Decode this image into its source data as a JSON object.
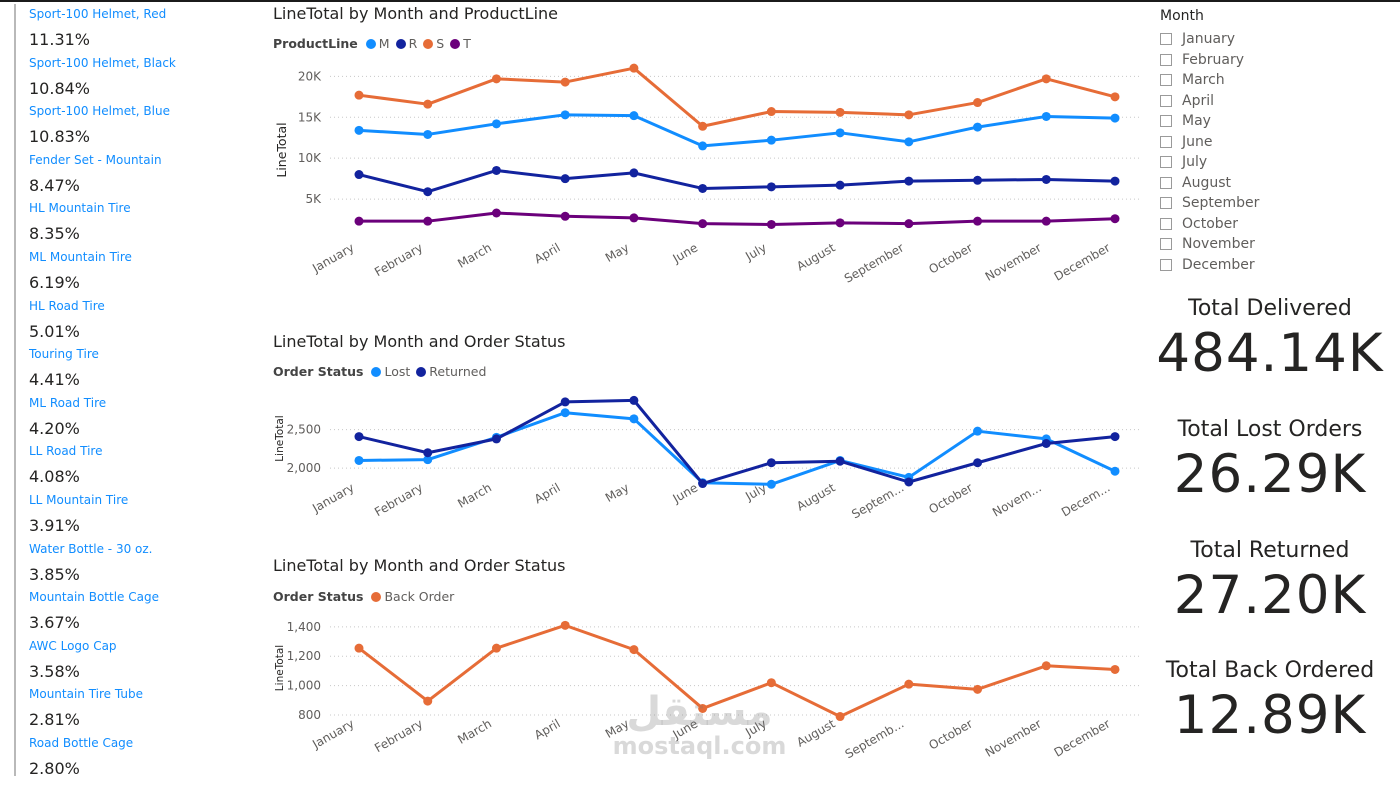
{
  "products": [
    {
      "name": "Sport-100 Helmet, Red",
      "pct": "11.31%"
    },
    {
      "name": "Sport-100 Helmet, Black",
      "pct": "10.84%"
    },
    {
      "name": "Sport-100 Helmet, Blue",
      "pct": "10.83%"
    },
    {
      "name": "Fender Set - Mountain",
      "pct": "8.47%"
    },
    {
      "name": "HL Mountain Tire",
      "pct": "8.35%"
    },
    {
      "name": "ML Mountain Tire",
      "pct": "6.19%"
    },
    {
      "name": "HL Road Tire",
      "pct": "5.01%"
    },
    {
      "name": "Touring Tire",
      "pct": "4.41%"
    },
    {
      "name": "ML Road Tire",
      "pct": "4.20%"
    },
    {
      "name": "LL Road Tire",
      "pct": "4.08%"
    },
    {
      "name": "LL Mountain Tire",
      "pct": "3.91%"
    },
    {
      "name": "Water Bottle - 30 oz.",
      "pct": "3.85%"
    },
    {
      "name": "Mountain Bottle Cage",
      "pct": "3.67%"
    },
    {
      "name": "AWC Logo Cap",
      "pct": "3.58%"
    },
    {
      "name": "Mountain Tire Tube",
      "pct": "2.81%"
    },
    {
      "name": "Road Bottle Cage",
      "pct": "2.80%"
    }
  ],
  "chart_data": [
    {
      "type": "line",
      "title": "LineTotal by Month and ProductLine",
      "legend_title": "ProductLine",
      "legend_placement": "top-left",
      "ylabel": "LineTotal",
      "xlabel": "",
      "ylim": [
        0,
        22000
      ],
      "yticks": [
        5000,
        10000,
        15000,
        20000
      ],
      "ytick_labels": [
        "5K",
        "10K",
        "15K",
        "20K"
      ],
      "grid": true,
      "categories": [
        "January",
        "February",
        "March",
        "April",
        "May",
        "June",
        "July",
        "August",
        "September",
        "October",
        "November",
        "December"
      ],
      "x_labels": [
        "January",
        "February",
        "March",
        "April",
        "May",
        "June",
        "July",
        "August",
        "September",
        "October",
        "November",
        "December"
      ],
      "series": [
        {
          "name": "M",
          "color": "#118dff",
          "values": [
            13400,
            12900,
            14200,
            15300,
            15200,
            11500,
            12200,
            13100,
            12000,
            13800,
            15100,
            14900
          ]
        },
        {
          "name": "R",
          "color": "#12239e",
          "values": [
            8000,
            5900,
            8500,
            7500,
            8200,
            6300,
            6500,
            6700,
            7200,
            7300,
            7400,
            7200
          ]
        },
        {
          "name": "S",
          "color": "#e66c37",
          "values": [
            17700,
            16600,
            19700,
            19300,
            21000,
            13900,
            15700,
            15600,
            15300,
            16800,
            19700,
            17500
          ]
        },
        {
          "name": "T",
          "color": "#6b007b",
          "values": [
            2300,
            2300,
            3300,
            2900,
            2700,
            2000,
            1900,
            2100,
            2000,
            2300,
            2300,
            2600
          ]
        }
      ]
    },
    {
      "type": "line",
      "title": "LineTotal by Month and Order Status",
      "legend_title": "Order Status",
      "legend_placement": "top-left",
      "ylabel": "LineTotal",
      "xlabel": "",
      "ylim": [
        1820,
        2950
      ],
      "yticks": [
        2000,
        2500
      ],
      "ytick_labels": [
        "2,000",
        "2,500"
      ],
      "grid": true,
      "categories": [
        "January",
        "February",
        "March",
        "April",
        "May",
        "June",
        "July",
        "August",
        "September",
        "October",
        "November",
        "December"
      ],
      "x_labels": [
        "January",
        "February",
        "March",
        "April",
        "May",
        "June",
        "July",
        "August",
        "Septem...",
        "October",
        "Novem...",
        "Decem..."
      ],
      "series": [
        {
          "name": "Lost",
          "color": "#118dff",
          "values": [
            2100,
            2110,
            2400,
            2720,
            2640,
            1810,
            1790,
            2100,
            1880,
            2480,
            2380,
            1960
          ]
        },
        {
          "name": "Returned",
          "color": "#12239e",
          "values": [
            2410,
            2200,
            2380,
            2860,
            2880,
            1800,
            2070,
            2090,
            1820,
            2070,
            2320,
            2410
          ]
        }
      ]
    },
    {
      "type": "line",
      "title": "LineTotal by Month and Order Status",
      "legend_title": "Order Status",
      "legend_placement": "top-left",
      "ylabel": "LineTotal",
      "xlabel": "",
      "ylim": [
        780,
        1460
      ],
      "yticks": [
        800,
        1000,
        1200,
        1400
      ],
      "ytick_labels": [
        "800",
        "1,000",
        "1,200",
        "1,400"
      ],
      "grid": true,
      "categories": [
        "January",
        "February",
        "March",
        "April",
        "May",
        "June",
        "July",
        "August",
        "September",
        "October",
        "November",
        "December"
      ],
      "x_labels": [
        "January",
        "February",
        "March",
        "April",
        "May",
        "June",
        "July",
        "August",
        "Septemb...",
        "October",
        "November",
        "December"
      ],
      "series": [
        {
          "name": "Back Order",
          "color": "#e66c37",
          "values": [
            1255,
            895,
            1255,
            1410,
            1245,
            845,
            1020,
            790,
            1010,
            975,
            1135,
            1110
          ]
        }
      ]
    }
  ],
  "slicer": {
    "title": "Month",
    "items": [
      "January",
      "February",
      "March",
      "April",
      "May",
      "June",
      "July",
      "August",
      "September",
      "October",
      "November",
      "December"
    ]
  },
  "cards": [
    {
      "label": "Total Delivered",
      "value": "484.14K"
    },
    {
      "label": "Total Lost Orders",
      "value": "26.29K"
    },
    {
      "label": "Total Returned",
      "value": "27.20K"
    },
    {
      "label": "Total Back Ordered",
      "value": "12.89K"
    }
  ],
  "watermark": {
    "arabic": "مستقل",
    "latin": "mostaql.com"
  }
}
